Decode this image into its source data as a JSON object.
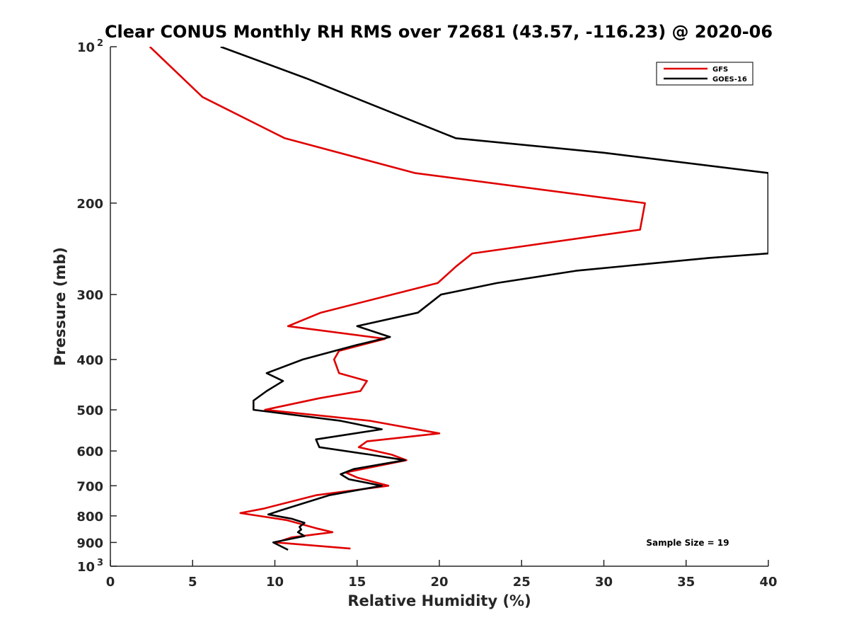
{
  "chart_data": {
    "type": "line",
    "title": "Clear CONUS Monthly RH RMS over 72681 (43.57, -116.23) @ 2020-06",
    "xlabel": "Relative Humidity (%)",
    "ylabel": "Pressure (mb)",
    "xlim": [
      0,
      40
    ],
    "ylim": [
      100,
      1000
    ],
    "yscale": "log",
    "yreversed": true,
    "xticks": [
      0,
      5,
      10,
      15,
      20,
      25,
      30,
      35,
      40
    ],
    "yticks": [
      {
        "value": 100,
        "label": "10",
        "exp": "2"
      },
      {
        "value": 200,
        "label": "200",
        "exp": ""
      },
      {
        "value": 300,
        "label": "300",
        "exp": ""
      },
      {
        "value": 400,
        "label": "400",
        "exp": ""
      },
      {
        "value": 500,
        "label": "500",
        "exp": ""
      },
      {
        "value": 600,
        "label": "600",
        "exp": ""
      },
      {
        "value": 700,
        "label": "700",
        "exp": ""
      },
      {
        "value": 800,
        "label": "800",
        "exp": ""
      },
      {
        "value": 900,
        "label": "900",
        "exp": ""
      },
      {
        "value": 1000,
        "label": "10",
        "exp": "3"
      }
    ],
    "legend_position": "top-right",
    "annotation": "Sample Size = 19",
    "series": [
      {
        "name": "GFS",
        "color": "#e00000",
        "points": [
          [
            2.4,
            100
          ],
          [
            5.6,
            125
          ],
          [
            10.6,
            150
          ],
          [
            18.5,
            175
          ],
          [
            32.5,
            200
          ],
          [
            32.2,
            225
          ],
          [
            22.0,
            250
          ],
          [
            21.0,
            265
          ],
          [
            19.9,
            285
          ],
          [
            12.8,
            325
          ],
          [
            10.8,
            345
          ],
          [
            16.7,
            365
          ],
          [
            13.9,
            385
          ],
          [
            13.6,
            400
          ],
          [
            13.9,
            425
          ],
          [
            15.6,
            440
          ],
          [
            15.2,
            460
          ],
          [
            12.7,
            475
          ],
          [
            9.4,
            500
          ],
          [
            15.8,
            525
          ],
          [
            20.0,
            555
          ],
          [
            15.6,
            575
          ],
          [
            15.1,
            590
          ],
          [
            17.1,
            610
          ],
          [
            18.0,
            625
          ],
          [
            14.3,
            660
          ],
          [
            15.0,
            675
          ],
          [
            16.9,
            700
          ],
          [
            12.5,
            730
          ],
          [
            9.3,
            775
          ],
          [
            7.9,
            790
          ],
          [
            10.7,
            815
          ],
          [
            12.5,
            845
          ],
          [
            13.5,
            860
          ],
          [
            11.0,
            880
          ],
          [
            10.1,
            900
          ],
          [
            14.6,
            925
          ]
        ]
      },
      {
        "name": "GOES-16",
        "color": "#000000",
        "points": [
          [
            6.7,
            100
          ],
          [
            11.9,
            115
          ],
          [
            21.0,
            150
          ],
          [
            30.0,
            160
          ],
          [
            40.0,
            175
          ],
          [
            40.0,
            250
          ],
          [
            36.4,
            255
          ],
          [
            28.3,
            270
          ],
          [
            23.5,
            285
          ],
          [
            20.1,
            300
          ],
          [
            18.7,
            325
          ],
          [
            15.0,
            345
          ],
          [
            17.0,
            362
          ],
          [
            15.0,
            375
          ],
          [
            11.7,
            400
          ],
          [
            9.5,
            425
          ],
          [
            10.5,
            440
          ],
          [
            9.5,
            460
          ],
          [
            8.7,
            480
          ],
          [
            8.7,
            500
          ],
          [
            14.0,
            525
          ],
          [
            16.5,
            545
          ],
          [
            12.5,
            570
          ],
          [
            12.7,
            590
          ],
          [
            15.8,
            610
          ],
          [
            17.9,
            625
          ],
          [
            14.8,
            650
          ],
          [
            14.0,
            665
          ],
          [
            14.5,
            680
          ],
          [
            16.5,
            700
          ],
          [
            13.3,
            730
          ],
          [
            10.4,
            780
          ],
          [
            9.6,
            795
          ],
          [
            11.0,
            810
          ],
          [
            11.8,
            825
          ],
          [
            11.5,
            840
          ],
          [
            11.6,
            850
          ],
          [
            11.4,
            860
          ],
          [
            11.8,
            875
          ],
          [
            9.9,
            900
          ],
          [
            10.8,
            930
          ]
        ]
      }
    ]
  }
}
